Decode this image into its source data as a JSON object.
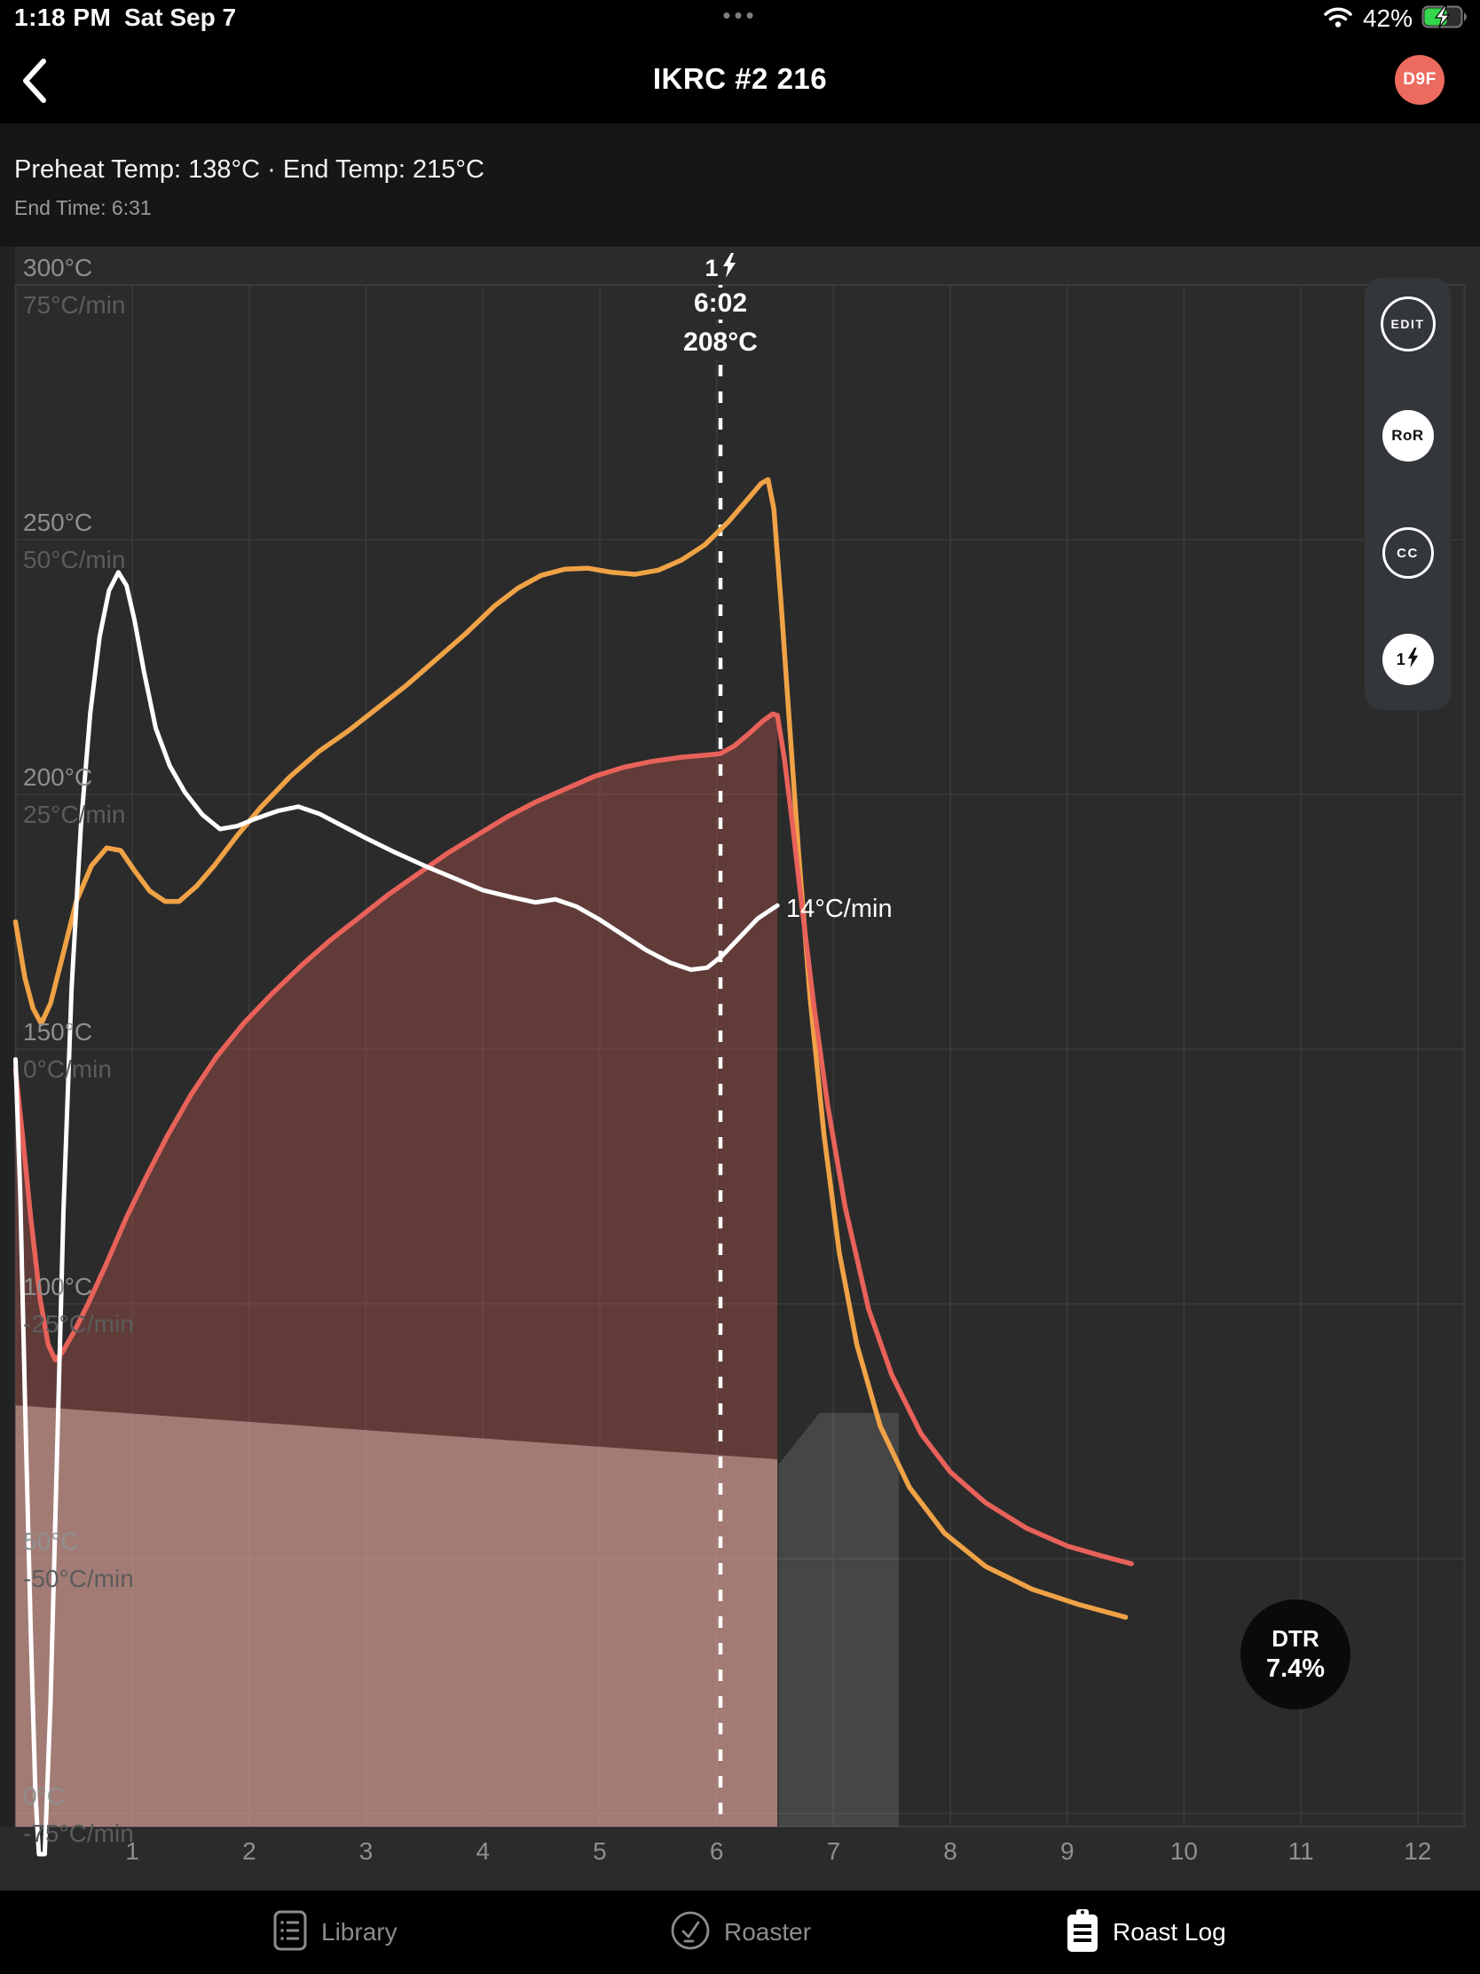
{
  "status_bar": {
    "time": "1:18 PM",
    "date": "Sat Sep 7",
    "multitask_dots": "•••",
    "battery_percent": "42%",
    "icons": [
      "wifi-icon",
      "battery-charging-icon"
    ]
  },
  "nav": {
    "back_icon": "chevron-left-icon",
    "title": "IKRC #2 216",
    "avatar": "D9F",
    "avatar_color": "#ed6a5e"
  },
  "roast_info": {
    "line1": "Preheat Temp: 138°C · End Temp: 215°C",
    "line2": "End Time: 6:31"
  },
  "side_controls": [
    {
      "label": "EDIT",
      "style": "outline"
    },
    {
      "label": "RoR",
      "style": "filled"
    },
    {
      "label": "CC",
      "style": "outline"
    },
    {
      "label": "1",
      "icon": "bolt-icon",
      "style": "filled"
    }
  ],
  "marker": {
    "event_number": "1",
    "event_icon": "bolt-icon",
    "time": "6:02",
    "temp": "208°C",
    "t_minutes": 6.033
  },
  "ror_end_label": "14°C/min",
  "dtr": {
    "label": "DTR",
    "value": "7.4%"
  },
  "tab_bar": [
    {
      "label": "Library",
      "icon": "library-icon",
      "active": false
    },
    {
      "label": "Roaster",
      "icon": "roaster-icon",
      "active": false
    },
    {
      "label": "Roast Log",
      "icon": "roast-log-icon",
      "active": true
    }
  ],
  "chart_data": {
    "type": "line",
    "title": "Roast profile IKRC #2 216",
    "x_axis": {
      "label": "time (minutes)",
      "range": [
        0,
        12.4
      ],
      "tick_values": [
        1,
        2,
        3,
        4,
        5,
        6,
        7,
        8,
        9,
        10,
        11,
        12
      ],
      "tick_labels": [
        "1",
        "2",
        "3",
        "4",
        "5",
        "6",
        "7",
        "8",
        "9",
        "10",
        "11",
        "12"
      ]
    },
    "y_axis_temp": {
      "label": "temperature",
      "range": [
        -2.6,
        300
      ],
      "tick_values": [
        300,
        250,
        200,
        150,
        100,
        50,
        0
      ],
      "tick_labels": [
        "300°C",
        "250°C",
        "200°C",
        "150°C",
        "100°C",
        "50°C",
        "0°C"
      ]
    },
    "y_axis_ror": {
      "label": "rate of rise",
      "range": [
        -76.3,
        75
      ],
      "tick_labels": [
        "75°C/min",
        "50°C/min",
        "25°C/min",
        "0°C/min",
        "-25°C/min",
        "-50°C/min",
        "-75°C/min"
      ]
    },
    "grid": true,
    "legend": "none",
    "colors": {
      "env_temp": "#f0a246",
      "bean_temp": "#e8625a",
      "ror": "#ffffff",
      "grid": "#3b3b3b",
      "marker": "#ffffff",
      "fill_roast": "rgba(232,99,90,0.28)",
      "fill_base": "rgba(255,212,202,0.42)",
      "fill_post": "rgba(255,255,255,0.13)"
    },
    "series": [
      {
        "name": "environment-temp",
        "axis": "temp",
        "color_key": "env_temp",
        "width": 5.5,
        "points": [
          [
            0,
            175
          ],
          [
            0.08,
            164
          ],
          [
            0.15,
            158
          ],
          [
            0.22,
            155
          ],
          [
            0.3,
            159
          ],
          [
            0.4,
            168
          ],
          [
            0.52,
            179
          ],
          [
            0.65,
            186
          ],
          [
            0.78,
            189.5
          ],
          [
            0.9,
            189
          ],
          [
            1.02,
            185
          ],
          [
            1.15,
            181
          ],
          [
            1.28,
            179
          ],
          [
            1.4,
            179
          ],
          [
            1.55,
            182
          ],
          [
            1.7,
            186
          ],
          [
            1.9,
            192
          ],
          [
            2.1,
            197.5
          ],
          [
            2.35,
            203.5
          ],
          [
            2.6,
            208.5
          ],
          [
            2.85,
            212.5
          ],
          [
            3.1,
            217
          ],
          [
            3.35,
            221.5
          ],
          [
            3.6,
            226.5
          ],
          [
            3.85,
            231.5
          ],
          [
            4.1,
            237
          ],
          [
            4.3,
            240.5
          ],
          [
            4.5,
            243
          ],
          [
            4.7,
            244.2
          ],
          [
            4.9,
            244.4
          ],
          [
            5.1,
            243.6
          ],
          [
            5.3,
            243.2
          ],
          [
            5.5,
            244
          ],
          [
            5.7,
            246
          ],
          [
            5.9,
            249
          ],
          [
            6.1,
            253.5
          ],
          [
            6.25,
            257.5
          ],
          [
            6.38,
            261
          ],
          [
            6.44,
            261.8
          ],
          [
            6.49,
            256
          ],
          [
            6.55,
            238
          ],
          [
            6.62,
            215
          ],
          [
            6.7,
            189
          ],
          [
            6.8,
            160
          ],
          [
            6.92,
            133
          ],
          [
            7.05,
            110
          ],
          [
            7.2,
            92
          ],
          [
            7.4,
            76
          ],
          [
            7.65,
            64
          ],
          [
            7.95,
            55
          ],
          [
            8.3,
            48.5
          ],
          [
            8.7,
            44
          ],
          [
            9.1,
            41
          ],
          [
            9.5,
            38.5
          ]
        ]
      },
      {
        "name": "bean-temp",
        "axis": "temp",
        "color_key": "bean_temp",
        "width": 5.5,
        "points": [
          [
            0,
            146
          ],
          [
            0.06,
            133
          ],
          [
            0.13,
            117
          ],
          [
            0.21,
            101
          ],
          [
            0.28,
            92
          ],
          [
            0.34,
            89
          ],
          [
            0.4,
            90.5
          ],
          [
            0.5,
            94.5
          ],
          [
            0.62,
            100
          ],
          [
            0.78,
            108
          ],
          [
            0.95,
            117
          ],
          [
            1.12,
            125
          ],
          [
            1.3,
            133
          ],
          [
            1.5,
            141
          ],
          [
            1.72,
            148.5
          ],
          [
            1.95,
            155
          ],
          [
            2.2,
            161
          ],
          [
            2.45,
            166.5
          ],
          [
            2.7,
            171.5
          ],
          [
            2.95,
            176
          ],
          [
            3.2,
            180.5
          ],
          [
            3.45,
            184.5
          ],
          [
            3.7,
            188.5
          ],
          [
            3.95,
            192
          ],
          [
            4.2,
            195.5
          ],
          [
            4.45,
            198.5
          ],
          [
            4.7,
            201
          ],
          [
            4.95,
            203.5
          ],
          [
            5.2,
            205.3
          ],
          [
            5.45,
            206.5
          ],
          [
            5.7,
            207.3
          ],
          [
            5.9,
            207.7
          ],
          [
            6.03,
            208
          ],
          [
            6.15,
            209.5
          ],
          [
            6.28,
            212
          ],
          [
            6.4,
            214.5
          ],
          [
            6.48,
            215.8
          ],
          [
            6.52,
            215.5
          ],
          [
            6.58,
            207
          ],
          [
            6.65,
            194
          ],
          [
            6.73,
            178
          ],
          [
            6.83,
            159
          ],
          [
            6.95,
            139
          ],
          [
            7.1,
            119
          ],
          [
            7.3,
            99
          ],
          [
            7.5,
            86
          ],
          [
            7.75,
            74.5
          ],
          [
            8.0,
            67
          ],
          [
            8.3,
            61
          ],
          [
            8.65,
            56
          ],
          [
            9.0,
            52.5
          ],
          [
            9.3,
            50.5
          ],
          [
            9.55,
            49
          ]
        ]
      },
      {
        "name": "rate-of-rise",
        "axis": "ror",
        "color_key": "ror",
        "width": 5,
        "points": [
          [
            0,
            -1
          ],
          [
            0.04,
            -14
          ],
          [
            0.08,
            -34
          ],
          [
            0.13,
            -57
          ],
          [
            0.17,
            -73
          ],
          [
            0.2,
            -79
          ],
          [
            0.25,
            -79
          ],
          [
            0.3,
            -64
          ],
          [
            0.35,
            -42
          ],
          [
            0.41,
            -16
          ],
          [
            0.48,
            6
          ],
          [
            0.56,
            22
          ],
          [
            0.64,
            33
          ],
          [
            0.72,
            40.5
          ],
          [
            0.8,
            45
          ],
          [
            0.88,
            46.8
          ],
          [
            0.95,
            45.5
          ],
          [
            1.02,
            42
          ],
          [
            1.1,
            37
          ],
          [
            1.2,
            31.5
          ],
          [
            1.32,
            27.8
          ],
          [
            1.45,
            25.2
          ],
          [
            1.6,
            23
          ],
          [
            1.75,
            21.6
          ],
          [
            1.9,
            21.9
          ],
          [
            2.05,
            22.6
          ],
          [
            2.25,
            23.4
          ],
          [
            2.42,
            23.8
          ],
          [
            2.6,
            23.1
          ],
          [
            2.8,
            21.9
          ],
          [
            3.0,
            20.7
          ],
          [
            3.25,
            19.3
          ],
          [
            3.5,
            18
          ],
          [
            3.75,
            16.8
          ],
          [
            4.0,
            15.6
          ],
          [
            4.25,
            14.9
          ],
          [
            4.45,
            14.4
          ],
          [
            4.62,
            14.7
          ],
          [
            4.8,
            14.0
          ],
          [
            5.0,
            12.7
          ],
          [
            5.2,
            11.2
          ],
          [
            5.4,
            9.7
          ],
          [
            5.6,
            8.5
          ],
          [
            5.78,
            7.8
          ],
          [
            5.92,
            8.0
          ],
          [
            6.05,
            9.2
          ],
          [
            6.2,
            11.0
          ],
          [
            6.35,
            12.8
          ],
          [
            6.48,
            13.8
          ],
          [
            6.52,
            14.1
          ]
        ]
      }
    ],
    "regions": [
      {
        "name": "roast-area",
        "type": "under-series",
        "series": "bean-temp",
        "t_end": 6.52,
        "color_key": "fill_roast"
      },
      {
        "name": "base-band",
        "type": "polygon",
        "color_key": "fill_base",
        "points": [
          [
            0,
            80.1
          ],
          [
            6.52,
            69.5
          ],
          [
            6.52,
            -2.6
          ],
          [
            0,
            -2.6
          ]
        ]
      },
      {
        "name": "post-drop",
        "type": "polygon",
        "color_key": "fill_post",
        "points": [
          [
            6.53,
            68.5
          ],
          [
            6.88,
            78.6
          ],
          [
            7.56,
            78.6
          ],
          [
            7.56,
            -2.6
          ],
          [
            6.53,
            -2.6
          ]
        ]
      }
    ],
    "marker_line": {
      "t": 6.033,
      "style": "dashed",
      "color_key": "marker"
    },
    "annotations": [
      {
        "text": "1⚡ 6:02 208°C",
        "t": 6.033,
        "kind": "first-crack-event"
      },
      {
        "text": "14°C/min",
        "at": "end-of-ror-curve"
      },
      {
        "text": "DTR 7.4%",
        "kind": "badge"
      }
    ]
  }
}
